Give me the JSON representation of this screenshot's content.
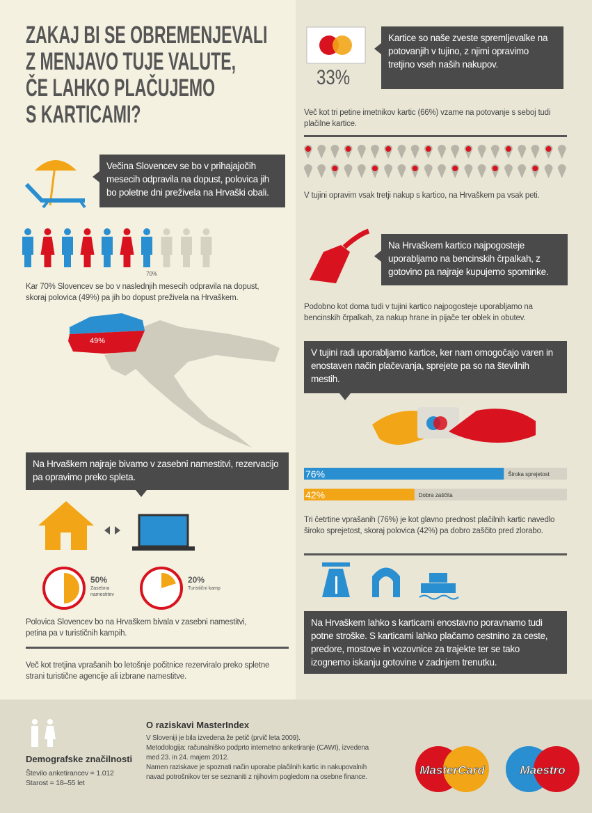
{
  "title_lines": [
    "ZAKAJ BI SE OBREMENJEVALI",
    "Z MENJAVO TUJE VALUTE,",
    "ČE LAHKO PLAČUJEMO",
    "S KARTICAMI?"
  ],
  "left": {
    "vacation_callout": "Večina Slovencev se bo v prihajajočih mesecih odpravila na dopust, polovica jih bo poletne dni preživela na Hrvaški obali.",
    "people_share": {
      "value": 70,
      "label": "70%"
    },
    "people_text": "Kar 70% Slovencev se bo v naslednjih mesecih odpravila na dopust, skoraj polovica (49%) pa jih bo dopust preživela na Hrvaškem.",
    "map_label": "49%",
    "stay_callout": "Na Hrvaškem najraje bivamo v zasebni namestitvi, rezervacijo pa opravimo preko spleta.",
    "pies": [
      {
        "value": 50,
        "label": "50%",
        "name": "Zasebna namestitev"
      },
      {
        "value": 20,
        "label": "20%",
        "name": "Turistični kamp"
      }
    ],
    "stay_text": "Polovica Slovencev bo na Hrvaškem bivala v zasebni namestitvi, petina pa v turističnih kampih.",
    "booking_text": "Več kot tretjina vprašanih bo letošnje počitnice rezerviralo preko spletne strani turistične agencije ali izbrane namestitve."
  },
  "right": {
    "card_percent": "33%",
    "card_callout": "Kartice so naše zveste spremljevalke na potovanjih v tujino, z njimi opravimo tretjino vseh naših nakupov.",
    "card_text": "Več kot tri petine imetnikov kartic (66%) vzame na potovanje s seboj tudi plačilne kartice.",
    "pins_text": "V tujini opravim vsak tretji nakup s kartico, na Hrvaškem pa vsak peti.",
    "fuel_callout": "Na Hrvaškem kartico najpogosteje uporabljamo na bencinskih črpalkah, z gotovino pa najraje kupujemo spominke.",
    "fuel_text": "Podobno kot doma tudi v tujini kartico najpogosteje uporabljamo na bencinskih črpalkah, za nakup hrane in pijače ter oblek in obutev.",
    "accept_callout": "V tujini radi uporabljamo kartice, ker nam omogočajo varen in enostaven način plačevanja, sprejete pa so na številnih mestih.",
    "bars": [
      {
        "value": 76,
        "label": "76%",
        "name": "Široka sprejetost",
        "color": "#2a8fd0"
      },
      {
        "value": 42,
        "label": "42%",
        "name": "Dobra zaščita",
        "color": "#f2a516"
      }
    ],
    "bars_text": "Tri četrtine vprašanih (76%) je kot glavno prednost plačilnih kartic navedlo široko sprejetost, skoraj polovica (42%) pa dobro zaščito pred zlorabo.",
    "tolls_callout": "Na Hrvaškem lahko s karticami enostavno poravnamo tudi potne stroške. S karticami lahko plačamo cestnino za ceste, predore, mostove in vozovnice za trajekte ter se tako izognemo iskanju gotovine v zadnjem trenutku."
  },
  "footer": {
    "demo_title": "Demografske značilnosti",
    "demo_lines": [
      "Število anketirancev = 1.012",
      "Starost = 18–55 let"
    ],
    "about_title": "O raziskavi MasterIndex",
    "about_lines": [
      "V Sloveniji je bila izvedena že petič (prvič leta 2009).",
      "Metodologija: računalniško podprto internetno anketiranje (CAWI), izvedena med 23. in 24. majem 2012.",
      "Namen raziskave je spoznati način uporabe plačilnih kartic in nakupovalnih navad potrošnikov ter se seznaniti z njihovim pogledom na osebne finance."
    ],
    "logos": [
      "MasterCard",
      "Maestro"
    ]
  }
}
